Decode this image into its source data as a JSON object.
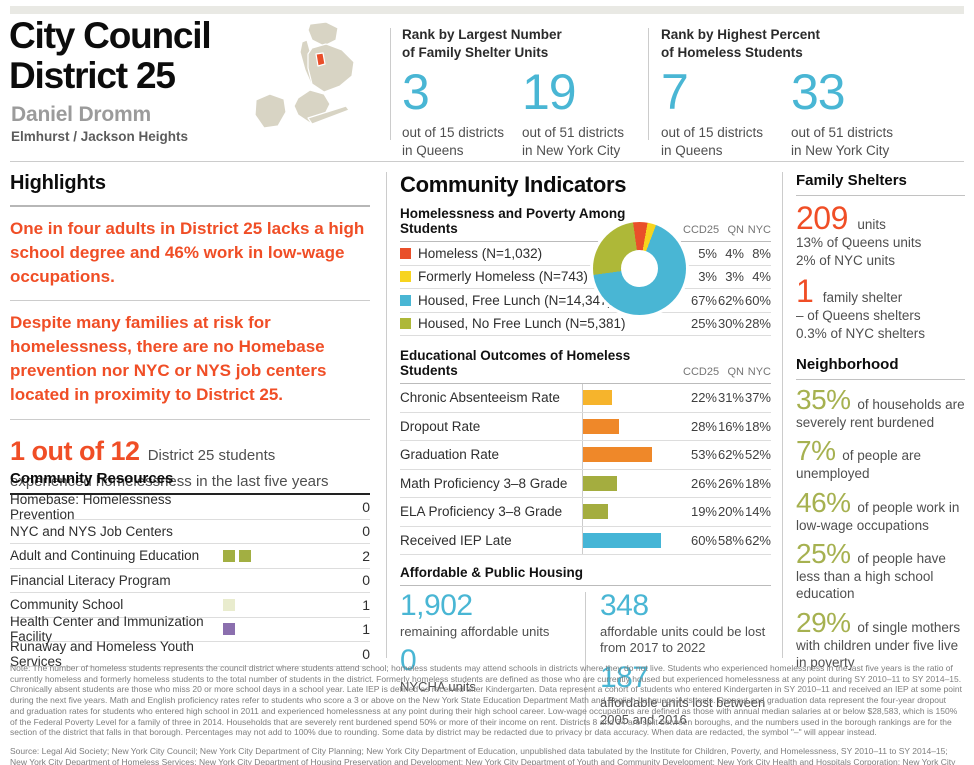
{
  "colors": {
    "accent_orange": "#f04e26",
    "accent_blue": "#49b6d4",
    "accent_olive": "#a6b150",
    "map_base": "#d8d4c4",
    "map_highlight": "#e94f2a"
  },
  "header": {
    "title_line1": "City Council",
    "title_line2": "District 25",
    "member": "Daniel Dromm",
    "neighborhoods": "Elmhurst / Jackson Heights",
    "ranks": [
      {
        "label_line1": "Rank by Largest Number",
        "label_line2": "of Family Shelter Units",
        "stats": [
          {
            "value": "3",
            "caption_line1": "out of 15 districts",
            "caption_line2": "in Queens"
          },
          {
            "value": "19",
            "caption_line1": "out of 51 districts",
            "caption_line2": "in New York City"
          }
        ]
      },
      {
        "label_line1": "Rank by Highest Percent",
        "label_line2": "of Homeless Students",
        "stats": [
          {
            "value": "7",
            "caption_line1": "out of 15 districts",
            "caption_line2": "in Queens"
          },
          {
            "value": "33",
            "caption_line1": "out of 51 districts",
            "caption_line2": "in New York City"
          }
        ]
      }
    ]
  },
  "highlights": {
    "title": "Highlights",
    "paragraphs": [
      "One in four adults in District 25 lacks a high school degree and 46% work in low-wage occupations.",
      "Despite many families at risk for homelessness, there are no Homebase prevention nor NYC or NYS job centers located in proximity to District 25."
    ],
    "stat": {
      "big": "1 out of 12",
      "rest_line1": "District 25 students",
      "rest_line2": "experienced homelessness in the last five years"
    }
  },
  "community_resources": {
    "title": "Community Resources",
    "rows": [
      {
        "label": "Homebase: Homelessness Prevention",
        "count": "0",
        "squares": []
      },
      {
        "label": "NYC and NYS Job Centers",
        "count": "0",
        "squares": []
      },
      {
        "label": "Adult and Continuing Education",
        "count": "2",
        "squares": [
          "#a2af42",
          "#a2af42"
        ]
      },
      {
        "label": "Financial Literacy Program",
        "count": "0",
        "squares": []
      },
      {
        "label": "Community School",
        "count": "1",
        "squares": [
          "#e9ecce"
        ]
      },
      {
        "label": "Health Center and Immunization Facility",
        "count": "1",
        "squares": [
          "#8b6fae"
        ]
      },
      {
        "label": "Runaway and Homeless Youth Services",
        "count": "0",
        "squares": []
      }
    ]
  },
  "community_indicators": {
    "title": "Community Indicators",
    "poverty": {
      "heading": "Homelessness and Poverty Among Students",
      "columns": [
        "CCD25",
        "QN",
        "NYC"
      ],
      "rows": [
        {
          "label": "Homeless (N=1,032)",
          "values": [
            "5%",
            "4%",
            "8%"
          ]
        },
        {
          "label": "Formerly Homeless (N=743)",
          "values": [
            "3%",
            "3%",
            "4%"
          ]
        },
        {
          "label": "Housed, Free Lunch (N=14,347)",
          "values": [
            "67%",
            "62%",
            "60%"
          ]
        },
        {
          "label": "Housed, No Free Lunch (N=5,381)",
          "values": [
            "25%",
            "30%",
            "28%"
          ]
        }
      ]
    },
    "education": {
      "heading": "Educational Outcomes of Homeless Students",
      "columns": [
        "CCD25",
        "QN",
        "NYC"
      ],
      "rows": [
        {
          "label": "Chronic Absenteeism Rate",
          "values": [
            "22%",
            "31%",
            "37%"
          ]
        },
        {
          "label": "Dropout Rate",
          "values": [
            "28%",
            "16%",
            "18%"
          ]
        },
        {
          "label": "Graduation Rate",
          "values": [
            "53%",
            "62%",
            "52%"
          ]
        },
        {
          "label": "Math Proficiency 3–8 Grade",
          "values": [
            "26%",
            "26%",
            "18%"
          ]
        },
        {
          "label": "ELA Proficiency 3–8 Grade",
          "values": [
            "19%",
            "20%",
            "14%"
          ]
        },
        {
          "label": "Received IEP Late",
          "values": [
            "60%",
            "58%",
            "62%"
          ]
        }
      ]
    },
    "housing": {
      "heading": "Affordable & Public Housing",
      "stats": [
        {
          "value": "1,902",
          "caption": "remaining affordable units"
        },
        {
          "value": "348",
          "caption": "affordable units could be lost from 2017 to 2022"
        },
        {
          "value": "0",
          "caption": "NYCHA units"
        },
        {
          "value": "187",
          "caption": "affordable units lost between 2005 and 2016"
        }
      ]
    }
  },
  "family_shelters": {
    "title": "Family Shelters",
    "stats": [
      {
        "value": "209",
        "unit": "units",
        "lines": [
          "13% of Queens units",
          "2% of NYC units"
        ]
      },
      {
        "value": "1",
        "unit": "family shelter",
        "lines": [
          "– of Queens shelters",
          "0.3% of NYC shelters"
        ]
      }
    ]
  },
  "neighborhood": {
    "title": "Neighborhood",
    "stats": [
      {
        "value": "35%",
        "text": "of households are severely rent burdened"
      },
      {
        "value": "7%",
        "text": "of people are unemployed"
      },
      {
        "value": "46%",
        "text": "of people work in low-wage occupations"
      },
      {
        "value": "25%",
        "text": "of people have less than a high school education"
      },
      {
        "value": "29%",
        "text": "of single mothers with children under five live in poverty"
      }
    ]
  },
  "chart_data": [
    {
      "type": "pie",
      "subtype": "donut",
      "title": "Homelessness and Poverty Among Students",
      "labels": [
        "Homeless (N=1,032)",
        "Formerly Homeless (N=743)",
        "Housed, Free Lunch (N=14,347)",
        "Housed, No Free Lunch (N=5,381)"
      ],
      "values": [
        5,
        3,
        67,
        25
      ],
      "unit": "%",
      "colors": [
        "#e94f2a",
        "#f7d41f",
        "#49b6d4",
        "#aeb838"
      ],
      "start_angle_deg": -8,
      "legend_position": "left"
    },
    {
      "type": "bar",
      "orientation": "horizontal",
      "title": "Educational Outcomes of Homeless Students",
      "categories": [
        "Chronic Absenteeism Rate",
        "Dropout Rate",
        "Graduation Rate",
        "Math Proficiency 3–8 Grade",
        "ELA Proficiency 3–8 Grade",
        "Received IEP Late"
      ],
      "values": [
        22,
        28,
        53,
        26,
        19,
        60
      ],
      "unit": "%",
      "xlim": [
        0,
        70
      ],
      "colors": [
        "#f6b42c",
        "#ef8829",
        "#ef8829",
        "#a4ad3f",
        "#a4ad3f",
        "#45b5d6"
      ],
      "note": "bars show CCD25 values; QN and NYC shown as text columns"
    }
  ],
  "footer": {
    "note": "Note: The number of homeless students represents the council district where students attend school; homeless students may attend schools in districts where they do not live. Students who experienced homelessness in the last five years is the ratio of currently homeless and formerly homeless students to the total number of students in the district. Formerly homeless students are defined as those who are currently housed but experienced homelessness at any point during SY 2010–11 to SY 2014–15. Chronically absent students are those who miss 20 or more school days in a school year. Late IEP is defined as received after Kindergarten. Data represent a cohort of students who entered Kindergarten in SY 2010–11 and received an IEP at some point during the next five years. Math and English proficiency rates refer to students who score a 3 or above on the New York State Education Department Math and English Language Arts tests. Dropout and graduation data represent the four-year dropout and graduation rates for students who entered high school in 2011 and experienced homelessness at any point during their high school career. Low-wage occupations are defined as those with annual median salaries at or below $28,583, which is 150% of the Federal Poverty Level for a family of three in 2014. Households that are severely rent burdened spend 50% or more of their income on rent. Districts 8 and 34 are split between boroughs, and the numbers used in the borough rankings are for the section of the district that falls in that borough. Percentages may not add to 100% due to rounding. Some data by district may be redacted due to privacy or data accuracy. When data are redacted, the symbol \"–\" will appear instead.",
    "source_before": "Source: Legal Aid Society; New York City Council; New York City Department of City Planning; New York City Department of Education, unpublished data tabulated by the Institute for Children, Poverty, and Homelessness, SY 2010–11 to SY 2014–15; New York City Department of Homeless Services; New York City Department of Housing Preservation and Development; New York City Department of Youth and Community Development; New York City Health and Hospitals Corporation; New York City Housing Authority; NYU Furman Center Moelis Institute for Affordable Housing Policy; U.S. Census Bureau, ",
    "source_italic": "American Community Survey 5-year Estimates",
    "source_after": ", 2014."
  }
}
